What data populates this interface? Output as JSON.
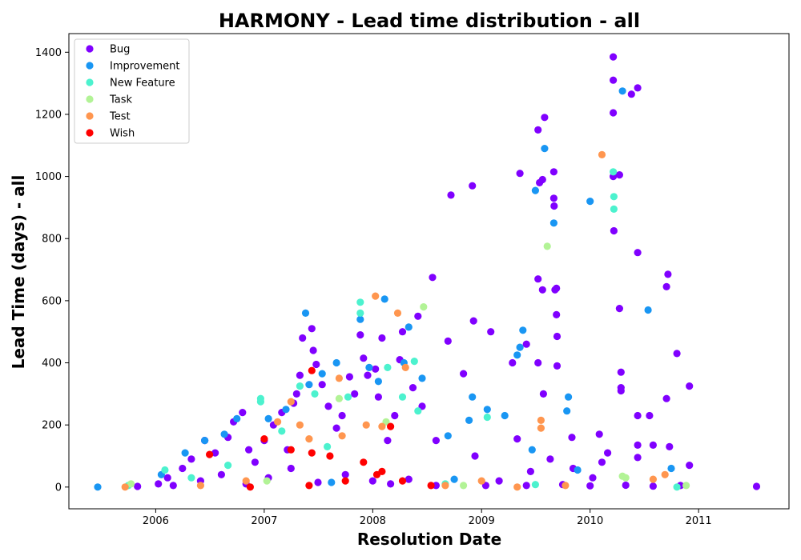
{
  "chart_data": {
    "type": "scatter",
    "title": "HARMONY - Lead time distribution - all",
    "xlabel": "Resolution Date",
    "ylabel": "Lead Time (days) - all",
    "xlim": [
      "2005-03-15",
      "2011-11-01"
    ],
    "ylim": [
      -70,
      1460
    ],
    "xticks": [
      "2006",
      "2007",
      "2008",
      "2009",
      "2010",
      "2011"
    ],
    "yticks": [
      0,
      200,
      400,
      600,
      800,
      1000,
      1200,
      1400
    ],
    "grid": false,
    "legend_position": "top-left",
    "series": [
      {
        "name": "Bug",
        "color": "#8000ff",
        "points": [
          {
            "x": "2005-11-01",
            "y": 2
          },
          {
            "x": "2006-01-10",
            "y": 10
          },
          {
            "x": "2006-02-10",
            "y": 30
          },
          {
            "x": "2006-04-01",
            "y": 60
          },
          {
            "x": "2006-05-01",
            "y": 90
          },
          {
            "x": "2006-06-15",
            "y": 150
          },
          {
            "x": "2006-07-20",
            "y": 110
          },
          {
            "x": "2006-08-10",
            "y": 40
          },
          {
            "x": "2006-09-01",
            "y": 160
          },
          {
            "x": "2006-09-20",
            "y": 210
          },
          {
            "x": "2006-10-20",
            "y": 240
          },
          {
            "x": "2006-11-10",
            "y": 120
          },
          {
            "x": "2006-12-01",
            "y": 80
          },
          {
            "x": "2007-01-01",
            "y": 150
          },
          {
            "x": "2007-02-01",
            "y": 200
          },
          {
            "x": "2007-03-01",
            "y": 240
          },
          {
            "x": "2007-03-20",
            "y": 120
          },
          {
            "x": "2007-04-10",
            "y": 270
          },
          {
            "x": "2007-04-20",
            "y": 300
          },
          {
            "x": "2007-05-01",
            "y": 360
          },
          {
            "x": "2007-05-10",
            "y": 480
          },
          {
            "x": "2007-06-10",
            "y": 510
          },
          {
            "x": "2007-06-15",
            "y": 440
          },
          {
            "x": "2007-06-25",
            "y": 395
          },
          {
            "x": "2007-07-15",
            "y": 330
          },
          {
            "x": "2007-08-05",
            "y": 260
          },
          {
            "x": "2007-09-01",
            "y": 190
          },
          {
            "x": "2007-09-20",
            "y": 230
          },
          {
            "x": "2007-10-15",
            "y": 355
          },
          {
            "x": "2007-11-01",
            "y": 300
          },
          {
            "x": "2007-11-20",
            "y": 490
          },
          {
            "x": "2007-12-01",
            "y": 415
          },
          {
            "x": "2007-12-15",
            "y": 360
          },
          {
            "x": "2008-01-10",
            "y": 380
          },
          {
            "x": "2008-01-20",
            "y": 290
          },
          {
            "x": "2008-02-01",
            "y": 480
          },
          {
            "x": "2008-02-20",
            "y": 150
          },
          {
            "x": "2008-03-15",
            "y": 230
          },
          {
            "x": "2008-04-01",
            "y": 410
          },
          {
            "x": "2008-04-10",
            "y": 500
          },
          {
            "x": "2008-05-15",
            "y": 320
          },
          {
            "x": "2008-06-01",
            "y": 550
          },
          {
            "x": "2008-06-15",
            "y": 260
          },
          {
            "x": "2008-07-20",
            "y": 675
          },
          {
            "x": "2008-08-01",
            "y": 150
          },
          {
            "x": "2008-09-10",
            "y": 470
          },
          {
            "x": "2008-09-20",
            "y": 940
          },
          {
            "x": "2008-11-01",
            "y": 365
          },
          {
            "x": "2008-12-01",
            "y": 970
          },
          {
            "x": "2008-12-05",
            "y": 535
          },
          {
            "x": "2008-12-10",
            "y": 100
          },
          {
            "x": "2009-02-01",
            "y": 500
          },
          {
            "x": "2009-03-01",
            "y": 20
          },
          {
            "x": "2009-04-15",
            "y": 400
          },
          {
            "x": "2009-05-01",
            "y": 155
          },
          {
            "x": "2009-05-10",
            "y": 1010
          },
          {
            "x": "2009-06-01",
            "y": 460
          },
          {
            "x": "2009-06-15",
            "y": 50
          },
          {
            "x": "2009-07-10",
            "y": 1150
          },
          {
            "x": "2009-07-15",
            "y": 980
          },
          {
            "x": "2009-07-10",
            "y": 670
          },
          {
            "x": "2009-07-10",
            "y": 400
          },
          {
            "x": "2009-07-25",
            "y": 990
          },
          {
            "x": "2009-07-25",
            "y": 635
          },
          {
            "x": "2009-07-28",
            "y": 300
          },
          {
            "x": "2009-08-01",
            "y": 1190
          },
          {
            "x": "2009-08-20",
            "y": 90
          },
          {
            "x": "2009-09-01",
            "y": 1015
          },
          {
            "x": "2009-09-01",
            "y": 930
          },
          {
            "x": "2009-09-02",
            "y": 905
          },
          {
            "x": "2009-09-05",
            "y": 635
          },
          {
            "x": "2009-09-10",
            "y": 640
          },
          {
            "x": "2009-09-10",
            "y": 555
          },
          {
            "x": "2009-09-12",
            "y": 485
          },
          {
            "x": "2009-09-12",
            "y": 390
          },
          {
            "x": "2009-11-01",
            "y": 160
          },
          {
            "x": "2009-11-05",
            "y": 60
          },
          {
            "x": "2010-01-10",
            "y": 30
          },
          {
            "x": "2010-02-01",
            "y": 170
          },
          {
            "x": "2010-02-10",
            "y": 80
          },
          {
            "x": "2010-03-01",
            "y": 110
          },
          {
            "x": "2010-03-20",
            "y": 1385
          },
          {
            "x": "2010-03-20",
            "y": 1310
          },
          {
            "x": "2010-03-20",
            "y": 1205
          },
          {
            "x": "2010-03-20",
            "y": 1000
          },
          {
            "x": "2010-03-22",
            "y": 825
          },
          {
            "x": "2010-04-10",
            "y": 1005
          },
          {
            "x": "2010-04-10",
            "y": 575
          },
          {
            "x": "2010-04-15",
            "y": 370
          },
          {
            "x": "2010-04-15",
            "y": 310
          },
          {
            "x": "2010-04-15",
            "y": 320
          },
          {
            "x": "2010-05-20",
            "y": 1265
          },
          {
            "x": "2010-06-10",
            "y": 1285
          },
          {
            "x": "2010-06-10",
            "y": 755
          },
          {
            "x": "2010-06-10",
            "y": 230
          },
          {
            "x": "2010-06-10",
            "y": 135
          },
          {
            "x": "2010-06-10",
            "y": 95
          },
          {
            "x": "2010-07-20",
            "y": 230
          },
          {
            "x": "2010-08-01",
            "y": 135
          },
          {
            "x": "2010-09-20",
            "y": 685
          },
          {
            "x": "2010-09-15",
            "y": 645
          },
          {
            "x": "2010-09-15",
            "y": 285
          },
          {
            "x": "2010-09-25",
            "y": 130
          },
          {
            "x": "2010-10-20",
            "y": 430
          },
          {
            "x": "2010-12-01",
            "y": 325
          },
          {
            "x": "2010-12-01",
            "y": 70
          },
          {
            "x": "2011-07-15",
            "y": 2
          },
          {
            "x": "2006-03-01",
            "y": 5
          },
          {
            "x": "2006-06-01",
            "y": 20
          },
          {
            "x": "2006-11-01",
            "y": 10
          },
          {
            "x": "2007-01-15",
            "y": 30
          },
          {
            "x": "2007-04-01",
            "y": 60
          },
          {
            "x": "2007-07-01",
            "y": 15
          },
          {
            "x": "2007-10-01",
            "y": 40
          },
          {
            "x": "2008-01-01",
            "y": 20
          },
          {
            "x": "2008-03-01",
            "y": 10
          },
          {
            "x": "2008-05-01",
            "y": 25
          },
          {
            "x": "2008-08-01",
            "y": 5
          },
          {
            "x": "2009-01-15",
            "y": 5
          },
          {
            "x": "2009-06-01",
            "y": 5
          },
          {
            "x": "2009-10-01",
            "y": 8
          },
          {
            "x": "2010-01-01",
            "y": 4
          },
          {
            "x": "2010-05-01",
            "y": 6
          },
          {
            "x": "2010-08-01",
            "y": 3
          },
          {
            "x": "2010-11-01",
            "y": 5
          }
        ]
      },
      {
        "name": "Improvement",
        "color": "#1996f3",
        "points": [
          {
            "x": "2005-06-20",
            "y": 0
          },
          {
            "x": "2006-01-20",
            "y": 40
          },
          {
            "x": "2006-04-10",
            "y": 110
          },
          {
            "x": "2006-06-15",
            "y": 150
          },
          {
            "x": "2006-08-20",
            "y": 170
          },
          {
            "x": "2006-10-01",
            "y": 220
          },
          {
            "x": "2007-01-15",
            "y": 220
          },
          {
            "x": "2007-03-15",
            "y": 250
          },
          {
            "x": "2007-05-20",
            "y": 560
          },
          {
            "x": "2007-06-01",
            "y": 330
          },
          {
            "x": "2007-07-15",
            "y": 365
          },
          {
            "x": "2007-09-01",
            "y": 400
          },
          {
            "x": "2007-11-20",
            "y": 540
          },
          {
            "x": "2007-12-20",
            "y": 385
          },
          {
            "x": "2008-01-20",
            "y": 340
          },
          {
            "x": "2008-02-10",
            "y": 605
          },
          {
            "x": "2008-04-15",
            "y": 400
          },
          {
            "x": "2008-05-01",
            "y": 515
          },
          {
            "x": "2008-06-15",
            "y": 350
          },
          {
            "x": "2008-09-10",
            "y": 165
          },
          {
            "x": "2008-11-20",
            "y": 215
          },
          {
            "x": "2008-12-01",
            "y": 290
          },
          {
            "x": "2009-01-20",
            "y": 250
          },
          {
            "x": "2009-03-20",
            "y": 230
          },
          {
            "x": "2009-05-10",
            "y": 450
          },
          {
            "x": "2009-05-01",
            "y": 425
          },
          {
            "x": "2009-05-20",
            "y": 505
          },
          {
            "x": "2009-06-20",
            "y": 120
          },
          {
            "x": "2009-07-01",
            "y": 955
          },
          {
            "x": "2009-08-01",
            "y": 1090
          },
          {
            "x": "2009-09-01",
            "y": 850
          },
          {
            "x": "2009-10-20",
            "y": 290
          },
          {
            "x": "2009-10-15",
            "y": 245
          },
          {
            "x": "2010-01-01",
            "y": 920
          },
          {
            "x": "2010-04-20",
            "y": 1275
          },
          {
            "x": "2010-07-15",
            "y": 570
          },
          {
            "x": "2010-10-01",
            "y": 60
          },
          {
            "x": "2009-11-20",
            "y": 55
          },
          {
            "x": "2008-10-01",
            "y": 25
          },
          {
            "x": "2007-08-15",
            "y": 15
          }
        ]
      },
      {
        "name": "New Feature",
        "color": "#4cf2ce",
        "points": [
          {
            "x": "2005-10-01",
            "y": 5
          },
          {
            "x": "2006-02-01",
            "y": 55
          },
          {
            "x": "2006-05-01",
            "y": 30
          },
          {
            "x": "2006-09-01",
            "y": 70
          },
          {
            "x": "2006-12-20",
            "y": 285
          },
          {
            "x": "2006-12-20",
            "y": 275
          },
          {
            "x": "2007-03-01",
            "y": 180
          },
          {
            "x": "2007-05-01",
            "y": 325
          },
          {
            "x": "2007-06-20",
            "y": 300
          },
          {
            "x": "2007-08-01",
            "y": 130
          },
          {
            "x": "2007-10-10",
            "y": 290
          },
          {
            "x": "2007-11-20",
            "y": 595
          },
          {
            "x": "2007-11-20",
            "y": 560
          },
          {
            "x": "2008-02-20",
            "y": 385
          },
          {
            "x": "2008-04-10",
            "y": 290
          },
          {
            "x": "2008-05-20",
            "y": 405
          },
          {
            "x": "2008-06-01",
            "y": 245
          },
          {
            "x": "2009-01-20",
            "y": 225
          },
          {
            "x": "2010-03-20",
            "y": 1015
          },
          {
            "x": "2010-03-22",
            "y": 935
          },
          {
            "x": "2010-03-22",
            "y": 895
          },
          {
            "x": "2010-10-20",
            "y": 0
          },
          {
            "x": "2008-09-01",
            "y": 10
          },
          {
            "x": "2009-07-01",
            "y": 8
          }
        ]
      },
      {
        "name": "Task",
        "color": "#b2f396",
        "points": [
          {
            "x": "2005-10-10",
            "y": 10
          },
          {
            "x": "2007-09-10",
            "y": 285
          },
          {
            "x": "2008-02-15",
            "y": 210
          },
          {
            "x": "2008-06-20",
            "y": 580
          },
          {
            "x": "2009-08-10",
            "y": 775
          },
          {
            "x": "2010-04-20",
            "y": 35
          },
          {
            "x": "2010-05-01",
            "y": 30
          },
          {
            "x": "2007-01-10",
            "y": 20
          },
          {
            "x": "2008-11-01",
            "y": 5
          },
          {
            "x": "2010-11-20",
            "y": 5
          }
        ]
      },
      {
        "name": "Test",
        "color": "#ff964f",
        "points": [
          {
            "x": "2005-09-20",
            "y": 0
          },
          {
            "x": "2006-06-01",
            "y": 5
          },
          {
            "x": "2006-11-01",
            "y": 20
          },
          {
            "x": "2007-02-15",
            "y": 210
          },
          {
            "x": "2007-04-01",
            "y": 275
          },
          {
            "x": "2007-05-01",
            "y": 200
          },
          {
            "x": "2007-06-01",
            "y": 155
          },
          {
            "x": "2007-09-10",
            "y": 350
          },
          {
            "x": "2007-09-20",
            "y": 165
          },
          {
            "x": "2007-12-10",
            "y": 200
          },
          {
            "x": "2008-01-10",
            "y": 615
          },
          {
            "x": "2008-02-01",
            "y": 195
          },
          {
            "x": "2008-03-25",
            "y": 560
          },
          {
            "x": "2008-04-20",
            "y": 385
          },
          {
            "x": "2009-05-01",
            "y": 0
          },
          {
            "x": "2009-07-20",
            "y": 215
          },
          {
            "x": "2009-07-20",
            "y": 190
          },
          {
            "x": "2010-02-10",
            "y": 1070
          },
          {
            "x": "2010-08-01",
            "y": 25
          },
          {
            "x": "2010-09-10",
            "y": 40
          },
          {
            "x": "2008-09-01",
            "y": 5
          },
          {
            "x": "2009-01-01",
            "y": 20
          },
          {
            "x": "2009-10-10",
            "y": 5
          }
        ]
      },
      {
        "name": "Wish",
        "color": "#ff0000",
        "points": [
          {
            "x": "2006-07-01",
            "y": 105
          },
          {
            "x": "2006-11-15",
            "y": 0
          },
          {
            "x": "2007-01-01",
            "y": 155
          },
          {
            "x": "2007-06-10",
            "y": 375
          },
          {
            "x": "2007-06-10",
            "y": 110
          },
          {
            "x": "2007-06-01",
            "y": 5
          },
          {
            "x": "2007-08-10",
            "y": 100
          },
          {
            "x": "2007-12-01",
            "y": 80
          },
          {
            "x": "2008-02-01",
            "y": 50
          },
          {
            "x": "2008-03-01",
            "y": 195
          },
          {
            "x": "2008-04-10",
            "y": 20
          },
          {
            "x": "2008-07-15",
            "y": 5
          },
          {
            "x": "2007-04-01",
            "y": 120
          },
          {
            "x": "2007-10-01",
            "y": 20
          },
          {
            "x": "2008-01-15",
            "y": 40
          }
        ]
      }
    ]
  }
}
